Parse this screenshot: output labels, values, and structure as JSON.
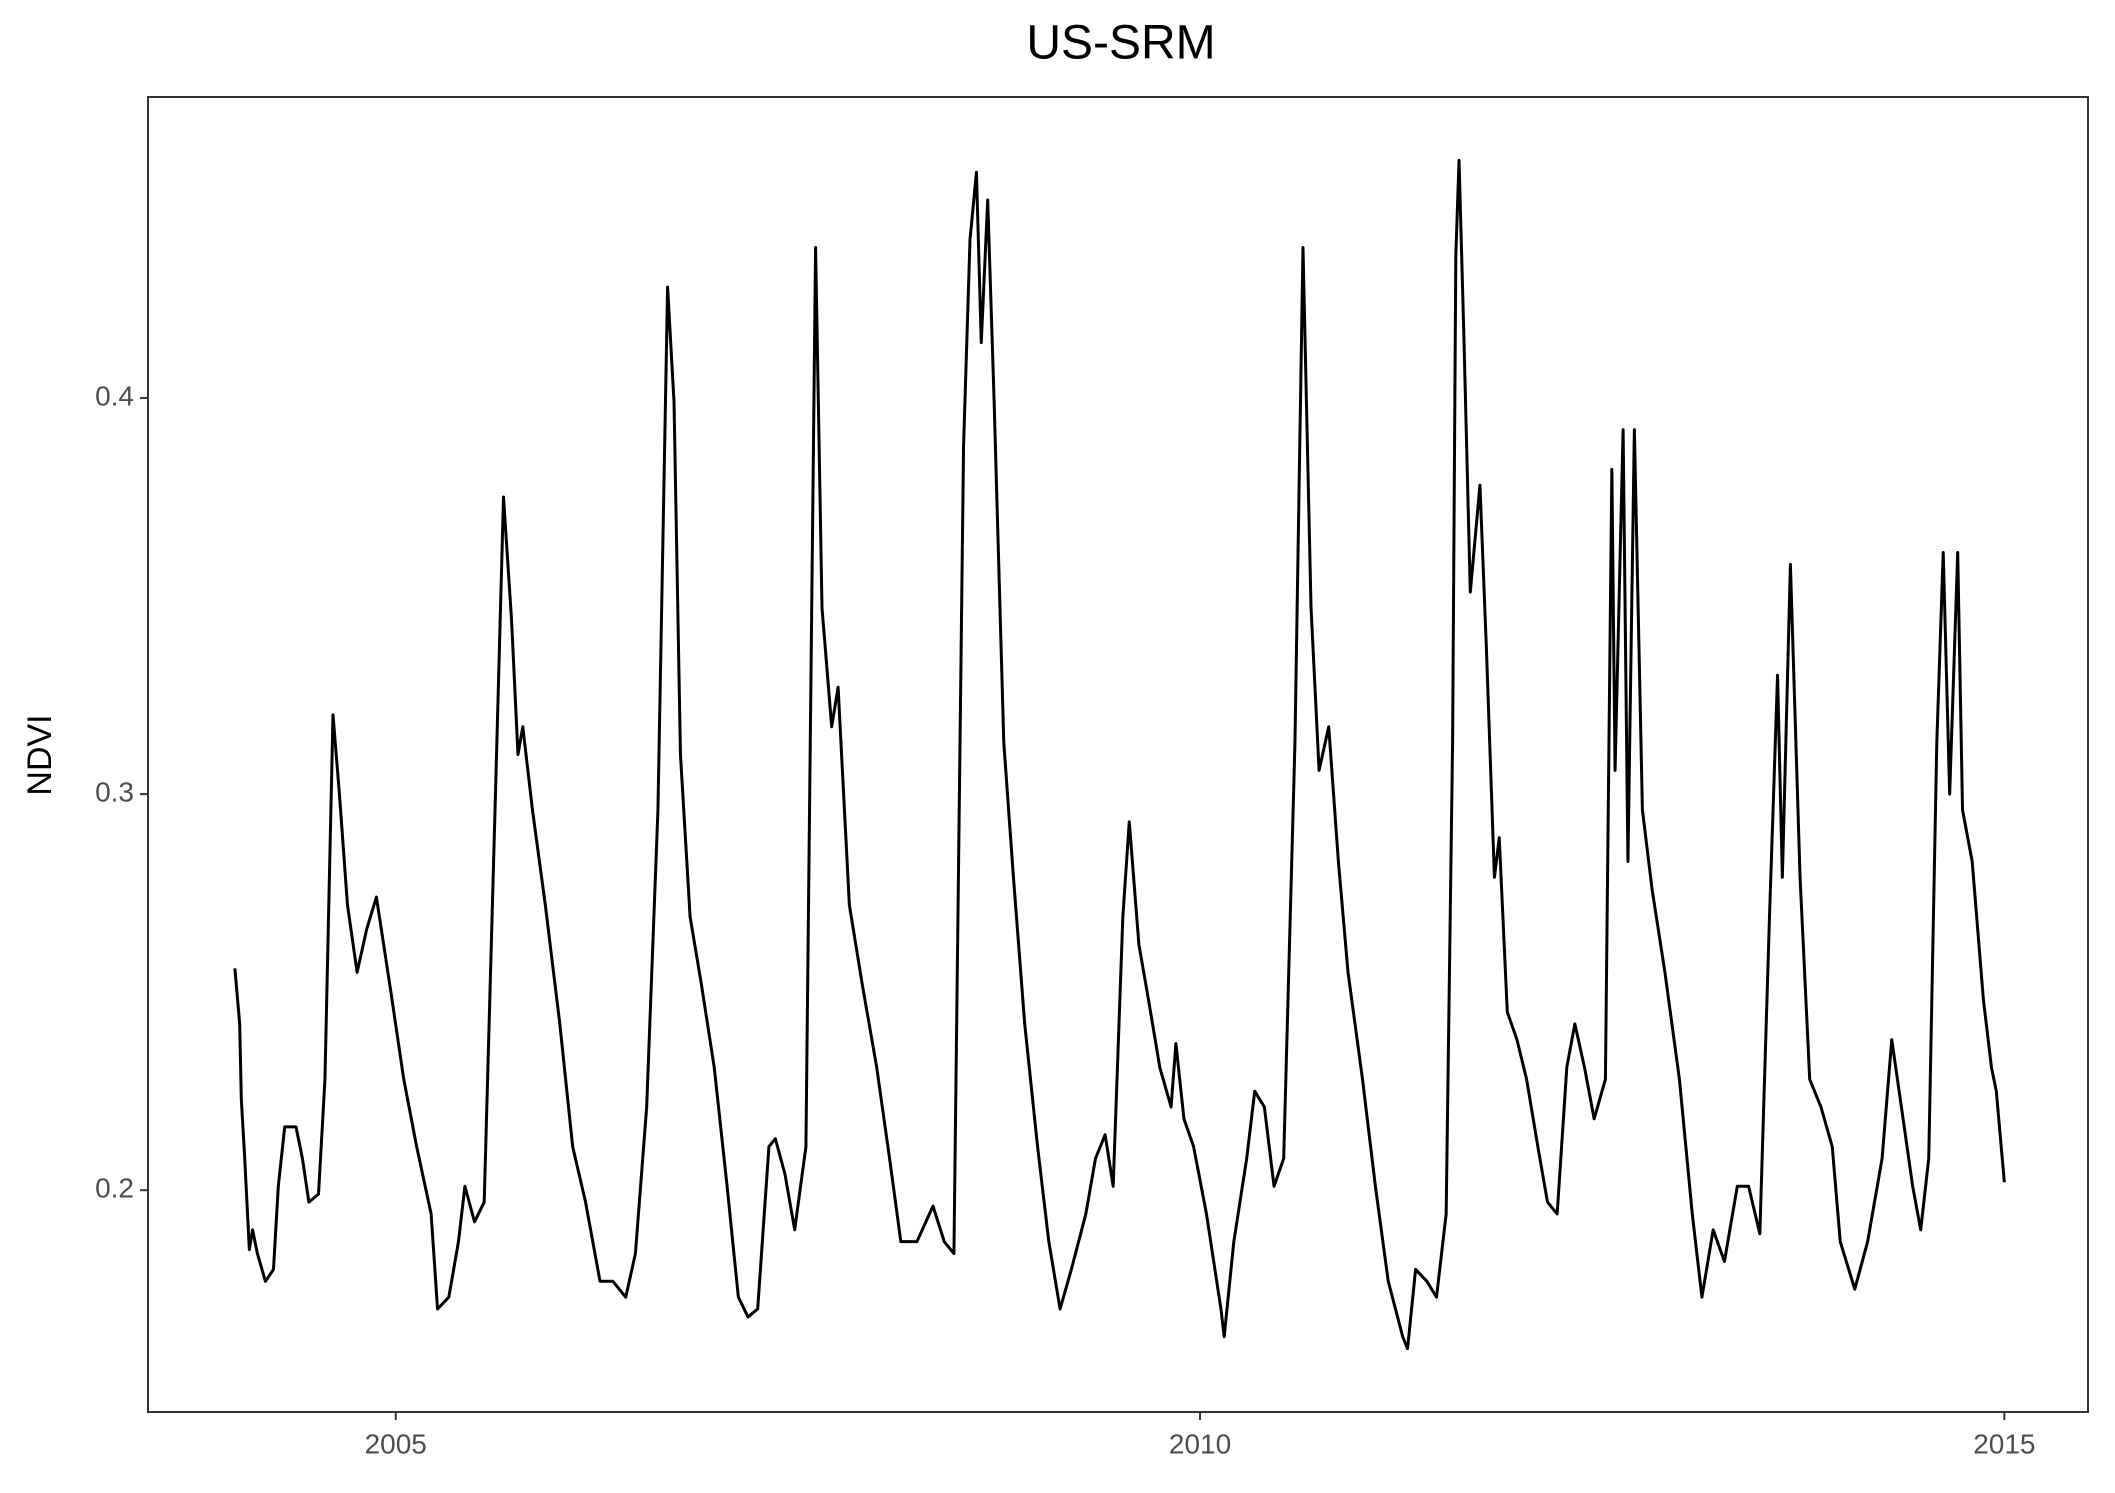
{
  "chart_data": {
    "type": "line",
    "title": "US-SRM",
    "y_label": "NDVI",
    "color": "#000000",
    "grid": false,
    "xlim": [
      2003.46,
      2015.52
    ],
    "ylim": [
      0.144,
      0.476
    ],
    "xticks": [
      2005,
      2010,
      2015
    ],
    "yticks": [
      0.2,
      0.3,
      0.4
    ],
    "x": [
      2004.0,
      2004.03,
      2004.04,
      2004.06,
      2004.09,
      2004.11,
      2004.14,
      2004.19,
      2004.24,
      2004.27,
      2004.31,
      2004.38,
      2004.42,
      2004.46,
      2004.52,
      2004.56,
      2004.61,
      2004.65,
      2004.7,
      2004.76,
      2004.82,
      2004.88,
      2004.97,
      2005.05,
      2005.13,
      2005.22,
      2005.26,
      2005.33,
      2005.39,
      2005.43,
      2005.49,
      2005.55,
      2005.62,
      2005.67,
      2005.72,
      2005.76,
      2005.79,
      2005.85,
      2005.93,
      2006.02,
      2006.1,
      2006.18,
      2006.27,
      2006.35,
      2006.43,
      2006.49,
      2006.56,
      2006.63,
      2006.69,
      2006.73,
      2006.77,
      2006.83,
      2006.9,
      2006.98,
      2007.06,
      2007.13,
      2007.19,
      2007.25,
      2007.32,
      2007.36,
      2007.42,
      2007.48,
      2007.55,
      2007.61,
      2007.65,
      2007.71,
      2007.75,
      2007.82,
      2007.9,
      2007.99,
      2008.07,
      2008.14,
      2008.24,
      2008.34,
      2008.41,
      2008.47,
      2008.53,
      2008.57,
      2008.61,
      2008.64,
      2008.68,
      2008.72,
      2008.78,
      2008.84,
      2008.91,
      2008.99,
      2009.06,
      2009.13,
      2009.2,
      2009.29,
      2009.35,
      2009.41,
      2009.46,
      2009.52,
      2009.56,
      2009.62,
      2009.68,
      2009.75,
      2009.82,
      2009.85,
      2009.9,
      2009.96,
      2010.04,
      2010.13,
      2010.15,
      2010.21,
      2010.29,
      2010.34,
      2010.4,
      2010.46,
      2010.52,
      2010.59,
      2010.64,
      2010.69,
      2010.74,
      2010.8,
      2010.86,
      2010.92,
      2011.01,
      2011.09,
      2011.17,
      2011.26,
      2011.29,
      2011.34,
      2011.41,
      2011.47,
      2011.53,
      2011.57,
      2011.59,
      2011.61,
      2011.64,
      2011.68,
      2011.74,
      2011.78,
      2011.83,
      2011.86,
      2011.91,
      2011.97,
      2012.03,
      2012.1,
      2012.16,
      2012.22,
      2012.28,
      2012.33,
      2012.39,
      2012.45,
      2012.52,
      2012.56,
      2012.58,
      2012.63,
      2012.66,
      2012.7,
      2012.75,
      2012.81,
      2012.89,
      2012.98,
      2013.06,
      2013.12,
      2013.19,
      2013.26,
      2013.34,
      2013.41,
      2013.48,
      2013.54,
      2013.59,
      2013.62,
      2013.67,
      2013.73,
      2013.79,
      2013.86,
      2013.93,
      2013.98,
      2014.07,
      2014.15,
      2014.24,
      2014.3,
      2014.36,
      2014.43,
      2014.48,
      2014.53,
      2014.58,
      2014.62,
      2014.66,
      2014.71,
      2014.74,
      2014.8,
      2014.87,
      2014.92,
      2014.95,
      2015.0
    ],
    "values": [
      0.256,
      0.242,
      0.223,
      0.209,
      0.185,
      0.19,
      0.184,
      0.177,
      0.18,
      0.201,
      0.216,
      0.216,
      0.208,
      0.197,
      0.199,
      0.228,
      0.32,
      0.3,
      0.272,
      0.255,
      0.266,
      0.274,
      0.25,
      0.228,
      0.211,
      0.194,
      0.17,
      0.173,
      0.187,
      0.201,
      0.192,
      0.197,
      0.3,
      0.375,
      0.344,
      0.31,
      0.317,
      0.296,
      0.272,
      0.242,
      0.211,
      0.197,
      0.177,
      0.177,
      0.173,
      0.184,
      0.221,
      0.296,
      0.428,
      0.399,
      0.31,
      0.269,
      0.252,
      0.231,
      0.201,
      0.173,
      0.168,
      0.17,
      0.211,
      0.213,
      0.204,
      0.19,
      0.211,
      0.438,
      0.347,
      0.317,
      0.327,
      0.272,
      0.252,
      0.231,
      0.208,
      0.187,
      0.187,
      0.196,
      0.187,
      0.184,
      0.388,
      0.44,
      0.457,
      0.414,
      0.45,
      0.399,
      0.313,
      0.279,
      0.242,
      0.211,
      0.187,
      0.17,
      0.18,
      0.194,
      0.208,
      0.214,
      0.201,
      0.269,
      0.293,
      0.262,
      0.248,
      0.231,
      0.221,
      0.237,
      0.218,
      0.211,
      0.194,
      0.17,
      0.163,
      0.187,
      0.208,
      0.225,
      0.221,
      0.201,
      0.208,
      0.313,
      0.438,
      0.347,
      0.306,
      0.317,
      0.283,
      0.255,
      0.228,
      0.201,
      0.177,
      0.163,
      0.16,
      0.18,
      0.177,
      0.173,
      0.194,
      0.313,
      0.436,
      0.46,
      0.416,
      0.351,
      0.378,
      0.337,
      0.279,
      0.289,
      0.245,
      0.238,
      0.228,
      0.211,
      0.197,
      0.194,
      0.231,
      0.242,
      0.231,
      0.218,
      0.228,
      0.382,
      0.306,
      0.392,
      0.283,
      0.392,
      0.296,
      0.276,
      0.255,
      0.228,
      0.194,
      0.173,
      0.19,
      0.182,
      0.201,
      0.201,
      0.189,
      0.269,
      0.33,
      0.279,
      0.358,
      0.279,
      0.228,
      0.221,
      0.211,
      0.187,
      0.175,
      0.187,
      0.208,
      0.238,
      0.221,
      0.201,
      0.19,
      0.208,
      0.313,
      0.361,
      0.3,
      0.361,
      0.296,
      0.283,
      0.248,
      0.231,
      0.225,
      0.202
    ]
  }
}
